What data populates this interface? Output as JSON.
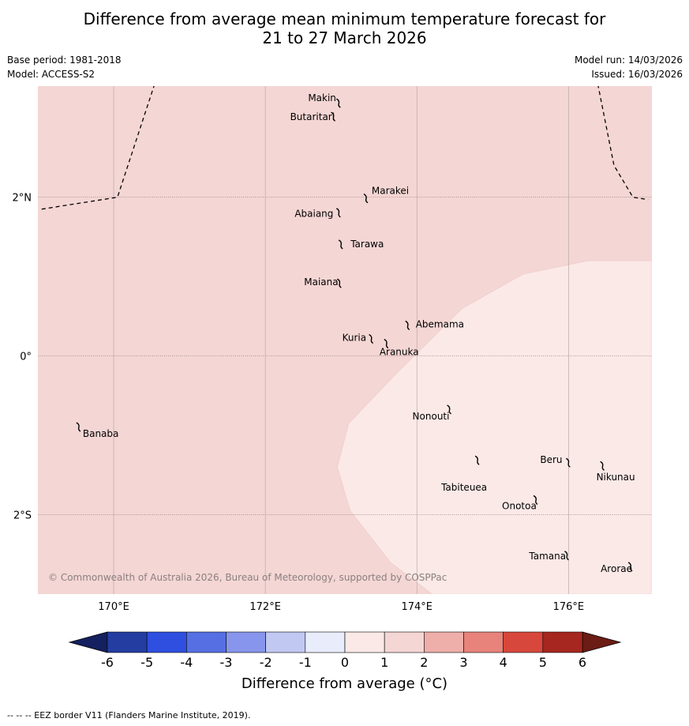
{
  "header": {
    "title_line1": "Difference from average mean minimum temperature forecast for",
    "title_line2": "21 to 27 March 2026",
    "base_period": "Base period: 1981-2018",
    "model": "Model: ACCESS-S2",
    "model_run": "Model run: 14/03/2026",
    "issued": "Issued: 16/03/2026"
  },
  "map": {
    "lon_range": [
      169.0,
      177.1
    ],
    "lat_range": [
      -3.0,
      3.4
    ],
    "lon_ticks": [
      {
        "value": 170,
        "label": "170°E"
      },
      {
        "value": 172,
        "label": "172°E"
      },
      {
        "value": 174,
        "label": "174°E"
      },
      {
        "value": 176,
        "label": "176°E"
      }
    ],
    "lat_ticks": [
      {
        "value": 2,
        "label": "2°N"
      },
      {
        "value": 0,
        "label": "0°"
      },
      {
        "value": -2,
        "label": "2°S"
      }
    ],
    "background_class": {
      "range": "1 to 2",
      "color": "#f4d6d4"
    },
    "warm_region": {
      "range": "0 to 1",
      "color": "#fbe9e7",
      "polygon": [
        [
          177.1,
          1.2
        ],
        [
          176.25,
          1.2
        ],
        [
          175.4,
          1.03
        ],
        [
          174.6,
          0.6
        ],
        [
          173.7,
          -0.25
        ],
        [
          173.1,
          -0.85
        ],
        [
          172.95,
          -1.4
        ],
        [
          173.12,
          -1.95
        ],
        [
          173.65,
          -2.6
        ],
        [
          174.2,
          -3.0
        ],
        [
          177.1,
          -3.0
        ]
      ]
    },
    "eez_borders": [
      [
        [
          169.05,
          1.85
        ],
        [
          170.05,
          2.0
        ],
        [
          170.6,
          3.6
        ]
      ],
      [
        [
          176.35,
          3.6
        ],
        [
          176.6,
          2.4
        ],
        [
          176.85,
          2.0
        ],
        [
          177.05,
          1.97
        ]
      ]
    ],
    "islands": [
      {
        "name": "Makin",
        "lon": 172.97,
        "lat": 3.2
      },
      {
        "name": "Butaritari",
        "lon": 172.9,
        "lat": 3.03
      },
      {
        "name": "Marakei",
        "lon": 173.33,
        "lat": 2.0
      },
      {
        "name": "Abaiang",
        "lon": 172.97,
        "lat": 1.82
      },
      {
        "name": "Tarawa",
        "lon": 173.0,
        "lat": 1.42
      },
      {
        "name": "Maiana",
        "lon": 172.98,
        "lat": 0.93
      },
      {
        "name": "Abemama",
        "lon": 173.88,
        "lat": 0.4
      },
      {
        "name": "Kuria",
        "lon": 173.4,
        "lat": 0.23
      },
      {
        "name": "Aranuka",
        "lon": 173.6,
        "lat": 0.17
      },
      {
        "name": "Banaba",
        "lon": 169.54,
        "lat": -0.88
      },
      {
        "name": "Nonouti",
        "lon": 174.43,
        "lat": -0.66
      },
      {
        "name": "Tabiteuea",
        "lon": 174.8,
        "lat": -1.3
      },
      {
        "name": "Beru",
        "lon": 176.0,
        "lat": -1.33
      },
      {
        "name": "Nikunau",
        "lon": 176.45,
        "lat": -1.37
      },
      {
        "name": "Onotoa",
        "lon": 175.57,
        "lat": -1.8
      },
      {
        "name": "Tamana",
        "lon": 175.98,
        "lat": -2.5
      },
      {
        "name": "Arorae",
        "lon": 176.82,
        "lat": -2.64
      }
    ],
    "copyright": "© Commonwealth of Australia 2026, Bureau of Meteorology, supported by COSPPac"
  },
  "colorbar": {
    "label": "Difference from average (°C)",
    "ticks": [
      "-6",
      "-5",
      "-4",
      "-3",
      "-2",
      "-1",
      "0",
      "1",
      "2",
      "3",
      "4",
      "5",
      "6"
    ],
    "colors": [
      "#233da1",
      "#2e4fe0",
      "#566fe3",
      "#8796ec",
      "#c1c8f2",
      "#e9ecfa",
      "#fbe9e7",
      "#f4d6d4",
      "#eeaea9",
      "#e8837b",
      "#d8473c",
      "#a5271f"
    ],
    "under_color": "#14205f",
    "over_color": "#6b1c14"
  },
  "footnote": "-- -- -- EEZ border V11 (Flanders Marine Institute, 2019)."
}
